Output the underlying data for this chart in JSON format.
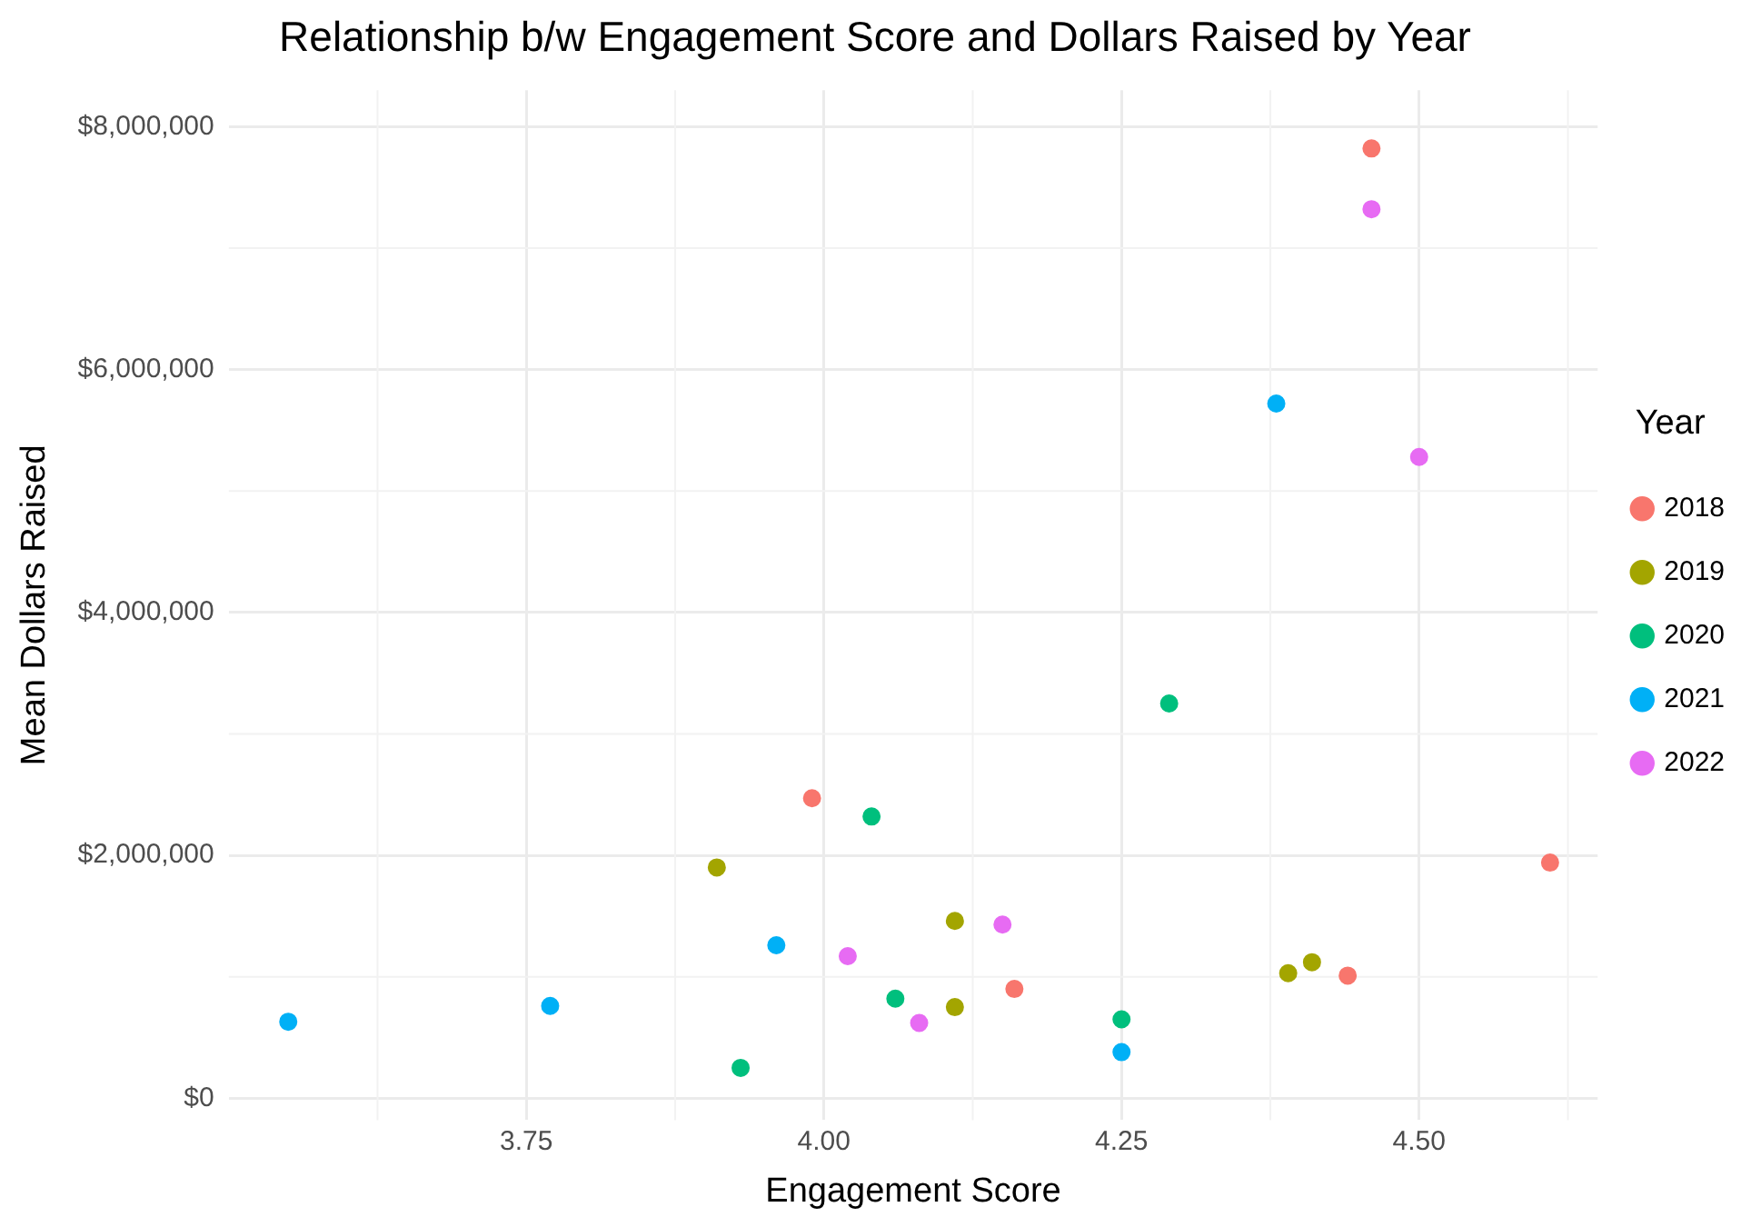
{
  "chart_data": {
    "type": "scatter",
    "title": "Relationship b/w Engagement Score and Dollars Raised by Year",
    "xlabel": "Engagement Score",
    "ylabel": "Mean Dollars Raised",
    "legend_title": "Year",
    "xlim": [
      3.5,
      4.65
    ],
    "ylim": [
      -180000,
      8300000
    ],
    "xticks": [
      {
        "value": 3.75,
        "label": "3.75"
      },
      {
        "value": 4,
        "label": "4.00"
      },
      {
        "value": 4.25,
        "label": "4.25"
      },
      {
        "value": 4.5,
        "label": "4.50"
      }
    ],
    "yticks": [
      {
        "value": 0,
        "label": "$0"
      },
      {
        "value": 2000000,
        "label": "$2,000,000"
      },
      {
        "value": 4000000,
        "label": "$4,000,000"
      },
      {
        "value": 6000000,
        "label": "$6,000,000"
      },
      {
        "value": 8000000,
        "label": "$8,000,000"
      }
    ],
    "grid": true,
    "legend": "right",
    "marker": "circle",
    "series": [
      {
        "name": "2018",
        "color": "#f8766d",
        "x": [
          4.46,
          3.99,
          4.16,
          4.44,
          4.61
        ],
        "values": [
          7820000,
          2470000,
          900000,
          1010000,
          1940000
        ]
      },
      {
        "name": "2019",
        "color": "#a3a500",
        "x": [
          3.91,
          4.11,
          4.11,
          4.39,
          4.41
        ],
        "values": [
          1900000,
          1460000,
          750000,
          1030000,
          1120000
        ]
      },
      {
        "name": "2020",
        "color": "#00bf7d",
        "x": [
          3.93,
          4.04,
          4.06,
          4.25,
          4.29
        ],
        "values": [
          250000,
          2320000,
          820000,
          650000,
          3250000
        ]
      },
      {
        "name": "2021",
        "color": "#00b0f6",
        "x": [
          3.55,
          3.77,
          3.96,
          4.25,
          4.38
        ],
        "values": [
          630000,
          760000,
          1260000,
          380000,
          5720000
        ]
      },
      {
        "name": "2022",
        "color": "#e76bf3",
        "x": [
          4.02,
          4.08,
          4.15,
          4.46,
          4.5
        ],
        "values": [
          1170000,
          620000,
          1430000,
          7320000,
          5280000
        ]
      }
    ]
  }
}
